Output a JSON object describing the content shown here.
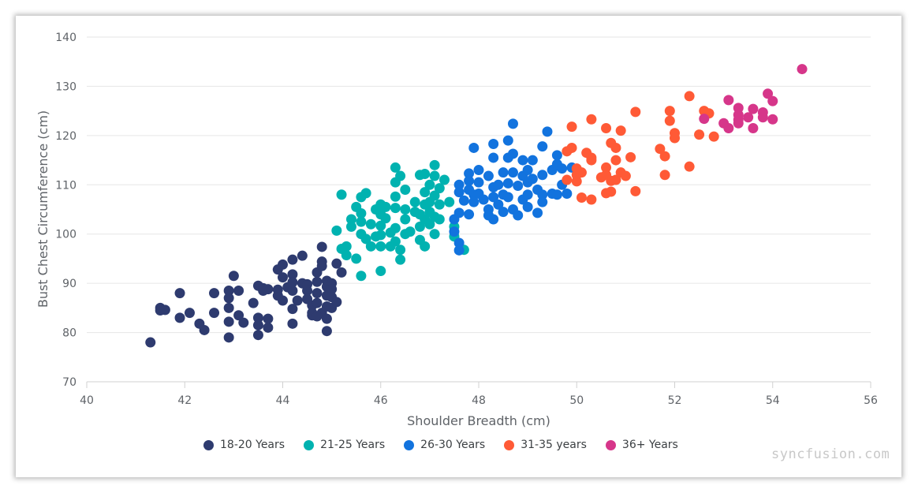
{
  "chart_data": {
    "type": "scatter",
    "xlabel": "Shoulder Breadth (cm)",
    "ylabel": "Bust Chest Circumference (cm)",
    "xlim": [
      40,
      56
    ],
    "ylim": [
      70,
      140
    ],
    "x_ticks": [
      "40",
      "42",
      "44",
      "46",
      "48",
      "50",
      "52",
      "54",
      "56"
    ],
    "y_ticks": [
      "70",
      "80",
      "90",
      "100",
      "110",
      "120",
      "130",
      "140"
    ],
    "grid": "horizontal",
    "legend_position": "bottom",
    "series": [
      {
        "name": "18-20 Years",
        "color": "#2e3b6f",
        "points": [
          [
            41.3,
            78
          ],
          [
            41.5,
            85
          ],
          [
            41.5,
            84.5
          ],
          [
            41.6,
            84.6
          ],
          [
            41.9,
            88
          ],
          [
            41.9,
            83
          ],
          [
            42.1,
            84
          ],
          [
            42.3,
            81.8
          ],
          [
            42.4,
            80.5
          ],
          [
            42.6,
            84
          ],
          [
            42.6,
            88
          ],
          [
            42.9,
            88.5
          ],
          [
            42.9,
            87
          ],
          [
            42.9,
            85
          ],
          [
            42.9,
            82.2
          ],
          [
            42.9,
            79
          ],
          [
            43.0,
            91.5
          ],
          [
            43.1,
            88.5
          ],
          [
            43.1,
            83.5
          ],
          [
            43.2,
            82
          ],
          [
            43.5,
            89.5
          ],
          [
            43.6,
            89
          ],
          [
            43.6,
            88.5
          ],
          [
            43.4,
            86
          ],
          [
            43.5,
            83
          ],
          [
            43.5,
            81.5
          ],
          [
            43.5,
            79.5
          ],
          [
            43.7,
            82.8
          ],
          [
            43.7,
            81
          ],
          [
            43.7,
            88.8
          ],
          [
            43.9,
            92.8
          ],
          [
            44.0,
            93.8
          ],
          [
            44.0,
            91.2
          ],
          [
            43.9,
            88.7
          ],
          [
            43.9,
            87.5
          ],
          [
            44.0,
            86.5
          ],
          [
            44.1,
            89.2
          ],
          [
            44.2,
            88.5
          ],
          [
            44.2,
            94.8
          ],
          [
            44.2,
            91.8
          ],
          [
            44.2,
            90.2
          ],
          [
            44.2,
            84.8
          ],
          [
            44.2,
            81.8
          ],
          [
            44.3,
            86.5
          ],
          [
            44.4,
            95.6
          ],
          [
            44.4,
            90
          ],
          [
            44.5,
            89.8
          ],
          [
            44.5,
            88.5
          ],
          [
            44.5,
            86.8
          ],
          [
            44.6,
            85.5
          ],
          [
            44.6,
            83.5
          ],
          [
            44.7,
            92.2
          ],
          [
            44.7,
            90.3
          ],
          [
            44.7,
            88
          ],
          [
            44.7,
            86
          ],
          [
            44.8,
            94.4
          ],
          [
            44.8,
            93.5
          ],
          [
            44.8,
            84
          ],
          [
            44.9,
            90.5
          ],
          [
            44.9,
            89.3
          ],
          [
            44.9,
            87.5
          ],
          [
            44.9,
            85.3
          ],
          [
            44.9,
            82.8
          ],
          [
            44.9,
            80.3
          ],
          [
            45.0,
            90
          ],
          [
            45.0,
            88.8
          ],
          [
            45.0,
            87.2
          ],
          [
            45.0,
            85
          ],
          [
            45.1,
            94
          ],
          [
            45.1,
            86.2
          ],
          [
            45.2,
            92.2
          ],
          [
            44.8,
            97.4
          ],
          [
            44.6,
            84
          ],
          [
            44.7,
            83.3
          ]
        ]
      },
      {
        "name": "21-25 Years",
        "color": "#00b2b0",
        "points": [
          [
            45.1,
            100.7
          ],
          [
            45.2,
            108
          ],
          [
            45.2,
            97
          ],
          [
            45.3,
            97.5
          ],
          [
            45.3,
            95.7
          ],
          [
            45.4,
            103
          ],
          [
            45.4,
            101.5
          ],
          [
            45.5,
            105.5
          ],
          [
            45.5,
            95
          ],
          [
            45.6,
            107.5
          ],
          [
            45.6,
            104.2
          ],
          [
            45.6,
            102.5
          ],
          [
            45.6,
            100
          ],
          [
            45.6,
            91.5
          ],
          [
            45.7,
            108.3
          ],
          [
            45.7,
            99
          ],
          [
            45.8,
            102
          ],
          [
            45.8,
            97.5
          ],
          [
            45.9,
            105
          ],
          [
            45.9,
            99.5
          ],
          [
            46.0,
            106
          ],
          [
            46.0,
            104
          ],
          [
            46.0,
            101.7
          ],
          [
            46.0,
            99.8
          ],
          [
            46.0,
            97.5
          ],
          [
            46.0,
            92.5
          ],
          [
            46.1,
            105.5
          ],
          [
            46.1,
            103.2
          ],
          [
            46.2,
            100.3
          ],
          [
            46.2,
            97.5
          ],
          [
            46.3,
            113.5
          ],
          [
            46.3,
            110.5
          ],
          [
            46.3,
            107.6
          ],
          [
            46.3,
            105.3
          ],
          [
            46.3,
            101.2
          ],
          [
            46.3,
            98.5
          ],
          [
            46.4,
            111.8
          ],
          [
            46.4,
            96.8
          ],
          [
            46.4,
            94.8
          ],
          [
            46.5,
            109
          ],
          [
            46.5,
            105
          ],
          [
            46.5,
            103
          ],
          [
            46.5,
            100
          ],
          [
            46.6,
            100.5
          ],
          [
            46.7,
            106.5
          ],
          [
            46.7,
            104.5
          ],
          [
            46.8,
            112
          ],
          [
            46.8,
            104
          ],
          [
            46.8,
            101.5
          ],
          [
            46.8,
            98.8
          ],
          [
            46.9,
            112.2
          ],
          [
            46.9,
            108.5
          ],
          [
            46.9,
            106
          ],
          [
            46.9,
            103
          ],
          [
            46.9,
            97.5
          ],
          [
            47.0,
            110
          ],
          [
            47.0,
            106.5
          ],
          [
            47.0,
            104.5
          ],
          [
            47.0,
            102
          ],
          [
            47.1,
            114
          ],
          [
            47.1,
            111.8
          ],
          [
            47.1,
            107.8
          ],
          [
            47.1,
            103.5
          ],
          [
            47.1,
            100
          ],
          [
            47.2,
            109.3
          ],
          [
            47.2,
            106
          ],
          [
            47.2,
            103
          ],
          [
            47.3,
            111
          ],
          [
            47.4,
            106.5
          ],
          [
            47.5,
            101.5
          ],
          [
            47.5,
            99.5
          ],
          [
            47.7,
            96.8
          ]
        ]
      },
      {
        "name": "26-30 Years",
        "color": "#1273de",
        "points": [
          [
            47.5,
            103
          ],
          [
            47.5,
            100.5
          ],
          [
            47.6,
            104.3
          ],
          [
            47.6,
            110
          ],
          [
            47.6,
            108.5
          ],
          [
            47.6,
            98.2
          ],
          [
            47.6,
            96.7
          ],
          [
            47.7,
            106.8
          ],
          [
            47.8,
            112.3
          ],
          [
            47.8,
            110.8
          ],
          [
            47.8,
            109
          ],
          [
            47.8,
            104
          ],
          [
            47.9,
            117.5
          ],
          [
            47.9,
            108
          ],
          [
            47.9,
            106.5
          ],
          [
            48.0,
            113
          ],
          [
            48.0,
            110.5
          ],
          [
            48.0,
            108.2
          ],
          [
            48.1,
            107
          ],
          [
            48.2,
            111.8
          ],
          [
            48.2,
            105
          ],
          [
            48.2,
            103.8
          ],
          [
            48.3,
            118.3
          ],
          [
            48.3,
            115.5
          ],
          [
            48.3,
            109.5
          ],
          [
            48.3,
            107.5
          ],
          [
            48.3,
            103
          ],
          [
            48.4,
            110
          ],
          [
            48.4,
            106
          ],
          [
            48.5,
            112.5
          ],
          [
            48.5,
            108
          ],
          [
            48.5,
            104.5
          ],
          [
            48.6,
            119
          ],
          [
            48.6,
            115.5
          ],
          [
            48.6,
            110.3
          ],
          [
            48.6,
            107.5
          ],
          [
            48.7,
            122.4
          ],
          [
            48.7,
            116.3
          ],
          [
            48.7,
            112.5
          ],
          [
            48.7,
            105
          ],
          [
            48.8,
            109.8
          ],
          [
            48.8,
            103.8
          ],
          [
            48.9,
            115
          ],
          [
            48.9,
            111.8
          ],
          [
            48.9,
            107
          ],
          [
            49.0,
            113
          ],
          [
            49.0,
            110.5
          ],
          [
            49.0,
            108
          ],
          [
            49.0,
            105.5
          ],
          [
            49.1,
            115
          ],
          [
            49.1,
            111.2
          ],
          [
            49.2,
            109
          ],
          [
            49.2,
            104.3
          ],
          [
            49.3,
            117.8
          ],
          [
            49.3,
            112
          ],
          [
            49.3,
            108
          ],
          [
            49.3,
            106.5
          ],
          [
            49.4,
            120.8
          ],
          [
            49.5,
            113
          ],
          [
            49.5,
            108.2
          ],
          [
            49.6,
            116
          ],
          [
            49.6,
            114.2
          ],
          [
            49.7,
            113.3
          ],
          [
            49.7,
            110
          ],
          [
            49.8,
            108.2
          ],
          [
            49.9,
            113.5
          ],
          [
            49.6,
            108
          ]
        ]
      },
      {
        "name": "31-35 years",
        "color": "#ff5a36",
        "points": [
          [
            49.8,
            116.8
          ],
          [
            49.9,
            121.8
          ],
          [
            49.9,
            117.5
          ],
          [
            49.8,
            111
          ],
          [
            50.0,
            113.3
          ],
          [
            50.0,
            112
          ],
          [
            50.0,
            110.7
          ],
          [
            50.1,
            107.4
          ],
          [
            50.1,
            112.5
          ],
          [
            50.2,
            116.5
          ],
          [
            50.3,
            123.3
          ],
          [
            50.3,
            115.5
          ],
          [
            50.3,
            115
          ],
          [
            50.3,
            107
          ],
          [
            50.5,
            111.5
          ],
          [
            50.6,
            121.5
          ],
          [
            50.6,
            113.5
          ],
          [
            50.6,
            112
          ],
          [
            50.6,
            108.3
          ],
          [
            50.7,
            118.5
          ],
          [
            50.7,
            110.8
          ],
          [
            50.7,
            108.6
          ],
          [
            50.8,
            117.5
          ],
          [
            50.8,
            115
          ],
          [
            50.8,
            111
          ],
          [
            50.9,
            121
          ],
          [
            50.9,
            112.5
          ],
          [
            51.0,
            111.8
          ],
          [
            51.1,
            115.6
          ],
          [
            51.2,
            124.8
          ],
          [
            51.2,
            108.7
          ],
          [
            51.7,
            117.3
          ],
          [
            51.8,
            115.8
          ],
          [
            51.8,
            112
          ],
          [
            51.9,
            125
          ],
          [
            51.9,
            123
          ],
          [
            52.0,
            120.5
          ],
          [
            52.0,
            119.5
          ],
          [
            52.3,
            128
          ],
          [
            52.3,
            113.7
          ],
          [
            52.5,
            120.2
          ],
          [
            52.6,
            125
          ],
          [
            52.7,
            124.5
          ],
          [
            52.8,
            119.8
          ]
        ]
      },
      {
        "name": "36+ Years",
        "color": "#d6368a",
        "points": [
          [
            52.6,
            123.4
          ],
          [
            53.0,
            122.5
          ],
          [
            53.1,
            127.2
          ],
          [
            53.1,
            121.5
          ],
          [
            53.3,
            125.6
          ],
          [
            53.3,
            124.2
          ],
          [
            53.3,
            123.2
          ],
          [
            53.3,
            122.5
          ],
          [
            53.5,
            123.7
          ],
          [
            53.6,
            125.4
          ],
          [
            53.6,
            121.5
          ],
          [
            53.8,
            124.7
          ],
          [
            53.8,
            123.7
          ],
          [
            53.9,
            128.5
          ],
          [
            54.0,
            127
          ],
          [
            54.0,
            123.3
          ],
          [
            54.6,
            133.5
          ]
        ]
      }
    ]
  },
  "watermark": "syncfusion.com"
}
